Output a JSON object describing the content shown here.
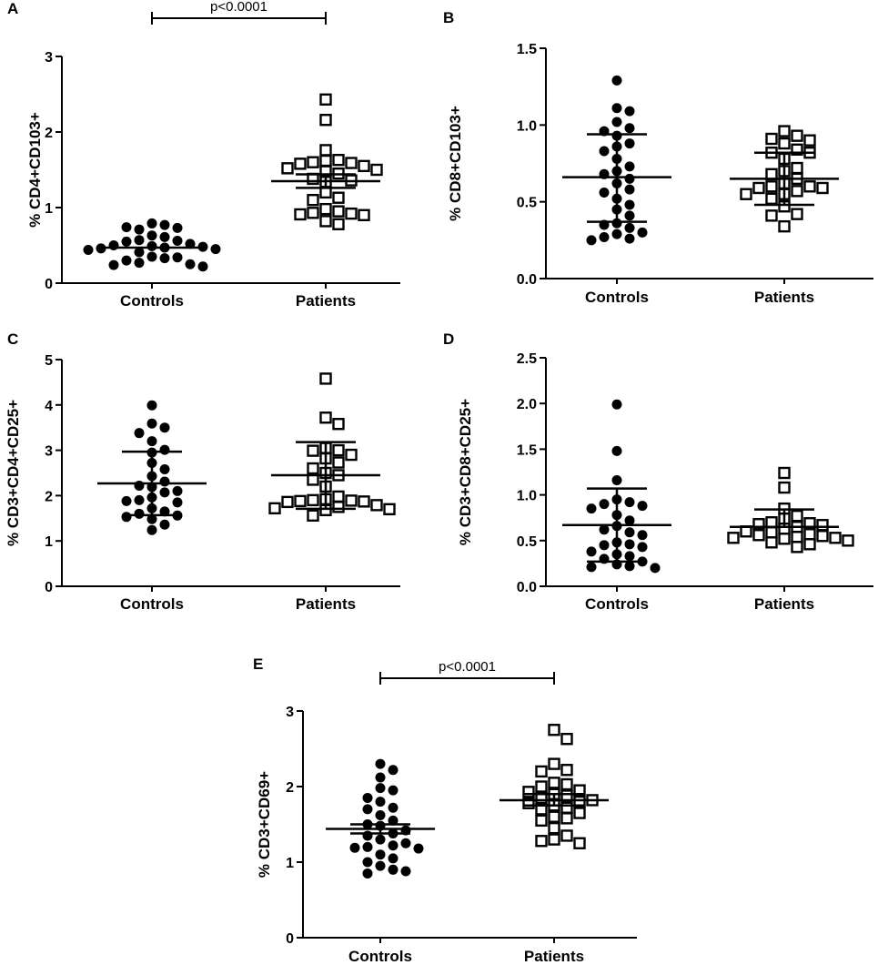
{
  "figure": {
    "chart_data": [
      {
        "id": "A",
        "type": "scatter",
        "panel_label": "A",
        "ylabel": "% CD4+CD103+",
        "ylim": [
          0,
          3
        ],
        "yticks": [
          "0",
          "1",
          "2",
          "3"
        ],
        "categories": [
          "Controls",
          "Patients"
        ],
        "significance": "p<0.0001",
        "series": [
          {
            "name": "Controls",
            "marker": "filled-circle",
            "mean": 0.47,
            "sd_low": 0.47,
            "sd_high": 0.47,
            "values": [
              0.79,
              0.77,
              0.71,
              0.73,
              0.74,
              0.63,
              0.61,
              0.57,
              0.56,
              0.55,
              0.52,
              0.5,
              0.49,
              0.48,
              0.47,
              0.46,
              0.45,
              0.44,
              0.41,
              0.35,
              0.34,
              0.33,
              0.3,
              0.27,
              0.25,
              0.24,
              0.22
            ]
          },
          {
            "name": "Patients",
            "marker": "open-square",
            "mean": 1.35,
            "sd_low": 1.26,
            "sd_high": 1.44,
            "values": [
              2.43,
              2.16,
              1.76,
              1.63,
              1.62,
              1.6,
              1.59,
              1.58,
              1.55,
              1.52,
              1.5,
              1.48,
              1.45,
              1.38,
              1.36,
              1.34,
              1.2,
              1.13,
              1.1,
              0.98,
              0.95,
              0.93,
              0.92,
              0.91,
              0.9,
              0.82,
              0.78
            ]
          }
        ]
      },
      {
        "id": "B",
        "type": "scatter",
        "panel_label": "B",
        "ylabel": "% CD8+CD103+",
        "ylim": [
          0,
          1.5
        ],
        "yticks": [
          "0.0",
          "0.5",
          "1.0",
          "1.5"
        ],
        "categories": [
          "Controls",
          "Patients"
        ],
        "significance": "",
        "series": [
          {
            "name": "Controls",
            "marker": "filled-circle",
            "mean": 0.66,
            "sd_low": 0.37,
            "sd_high": 0.94,
            "values": [
              1.29,
              1.11,
              1.09,
              1.02,
              0.98,
              0.96,
              0.93,
              0.88,
              0.86,
              0.83,
              0.78,
              0.73,
              0.7,
              0.68,
              0.65,
              0.62,
              0.58,
              0.56,
              0.52,
              0.48,
              0.45,
              0.41,
              0.36,
              0.35,
              0.33,
              0.3,
              0.29,
              0.27,
              0.26,
              0.25
            ]
          },
          {
            "name": "Patients",
            "marker": "open-square",
            "mean": 0.65,
            "sd_low": 0.48,
            "sd_high": 0.82,
            "values": [
              0.96,
              0.93,
              0.91,
              0.9,
              0.88,
              0.84,
              0.82,
              0.82,
              0.78,
              0.72,
              0.7,
              0.68,
              0.65,
              0.62,
              0.6,
              0.6,
              0.59,
              0.59,
              0.57,
              0.55,
              0.55,
              0.52,
              0.47,
              0.42,
              0.41,
              0.34
            ]
          }
        ]
      },
      {
        "id": "C",
        "type": "scatter",
        "panel_label": "C",
        "ylabel": "% CD3+CD4+CD25+",
        "ylim": [
          0,
          5
        ],
        "yticks": [
          "0",
          "1",
          "2",
          "3",
          "4",
          "5"
        ],
        "categories": [
          "Controls",
          "Patients"
        ],
        "significance": "",
        "series": [
          {
            "name": "Controls",
            "marker": "filled-circle",
            "mean": 2.27,
            "sd_low": 1.57,
            "sd_high": 2.97,
            "values": [
              3.99,
              3.59,
              3.5,
              3.38,
              3.2,
              3.01,
              2.95,
              2.72,
              2.58,
              2.43,
              2.31,
              2.22,
              2.19,
              2.1,
              2.07,
              1.96,
              1.9,
              1.88,
              1.85,
              1.72,
              1.65,
              1.6,
              1.56,
              1.53,
              1.48,
              1.36,
              1.24
            ]
          },
          {
            "name": "Patients",
            "marker": "open-square",
            "mean": 2.45,
            "sd_low": 1.71,
            "sd_high": 3.18,
            "values": [
              4.58,
              3.72,
              3.58,
              3.05,
              3.0,
              2.99,
              2.9,
              2.82,
              2.73,
              2.6,
              2.5,
              2.45,
              2.35,
              2.2,
              1.98,
              1.92,
              1.9,
              1.89,
              1.88,
              1.87,
              1.86,
              1.79,
              1.75,
              1.72,
              1.7,
              1.68,
              1.56
            ]
          }
        ]
      },
      {
        "id": "D",
        "type": "scatter",
        "panel_label": "D",
        "ylabel": "% CD3+CD8+CD25+",
        "ylim": [
          0,
          2.5
        ],
        "yticks": [
          "0.0",
          "0.5",
          "1.0",
          "1.5",
          "2.0",
          "2.5"
        ],
        "categories": [
          "Controls",
          "Patients"
        ],
        "significance": "",
        "series": [
          {
            "name": "Controls",
            "marker": "filled-circle",
            "mean": 0.67,
            "sd_low": 0.27,
            "sd_high": 1.07,
            "values": [
              1.99,
              1.48,
              1.16,
              0.95,
              0.92,
              0.9,
              0.88,
              0.85,
              0.78,
              0.72,
              0.66,
              0.62,
              0.59,
              0.56,
              0.48,
              0.46,
              0.45,
              0.43,
              0.38,
              0.35,
              0.33,
              0.3,
              0.27,
              0.24,
              0.22,
              0.21,
              0.2
            ]
          },
          {
            "name": "Patients",
            "marker": "open-square",
            "mean": 0.65,
            "sd_low": 0.65,
            "sd_high": 0.84,
            "values": [
              1.24,
              1.08,
              0.85,
              0.77,
              0.74,
              0.7,
              0.69,
              0.68,
              0.67,
              0.65,
              0.63,
              0.6,
              0.59,
              0.57,
              0.56,
              0.55,
              0.54,
              0.53,
              0.53,
              0.52,
              0.5,
              0.48,
              0.46,
              0.43
            ]
          }
        ]
      },
      {
        "id": "E",
        "type": "scatter",
        "panel_label": "E",
        "ylabel": "% CD3+CD69+",
        "ylim": [
          0,
          3
        ],
        "yticks": [
          "0",
          "1",
          "2",
          "3"
        ],
        "categories": [
          "Controls",
          "Patients"
        ],
        "significance": "p<0.0001",
        "series": [
          {
            "name": "Controls",
            "marker": "filled-circle",
            "mean": 1.44,
            "sd_low": 1.38,
            "sd_high": 1.5,
            "values": [
              2.3,
              2.22,
              2.12,
              1.98,
              1.95,
              1.85,
              1.8,
              1.72,
              1.7,
              1.62,
              1.55,
              1.5,
              1.48,
              1.42,
              1.38,
              1.35,
              1.3,
              1.25,
              1.22,
              1.2,
              1.19,
              1.18,
              1.1,
              1.05,
              1.0,
              0.95,
              0.9,
              0.88,
              0.85
            ]
          },
          {
            "name": "Patients",
            "marker": "open-square",
            "mean": 1.82,
            "sd_low": 1.75,
            "sd_high": 1.9,
            "values": [
              2.75,
              2.63,
              2.3,
              2.22,
              2.2,
              2.05,
              2.03,
              2.0,
              1.95,
              1.93,
              1.9,
              1.88,
              1.85,
              1.82,
              1.8,
              1.78,
              1.75,
              1.72,
              1.7,
              1.65,
              1.6,
              1.58,
              1.55,
              1.45,
              1.35,
              1.3,
              1.28,
              1.25
            ]
          }
        ]
      }
    ]
  }
}
